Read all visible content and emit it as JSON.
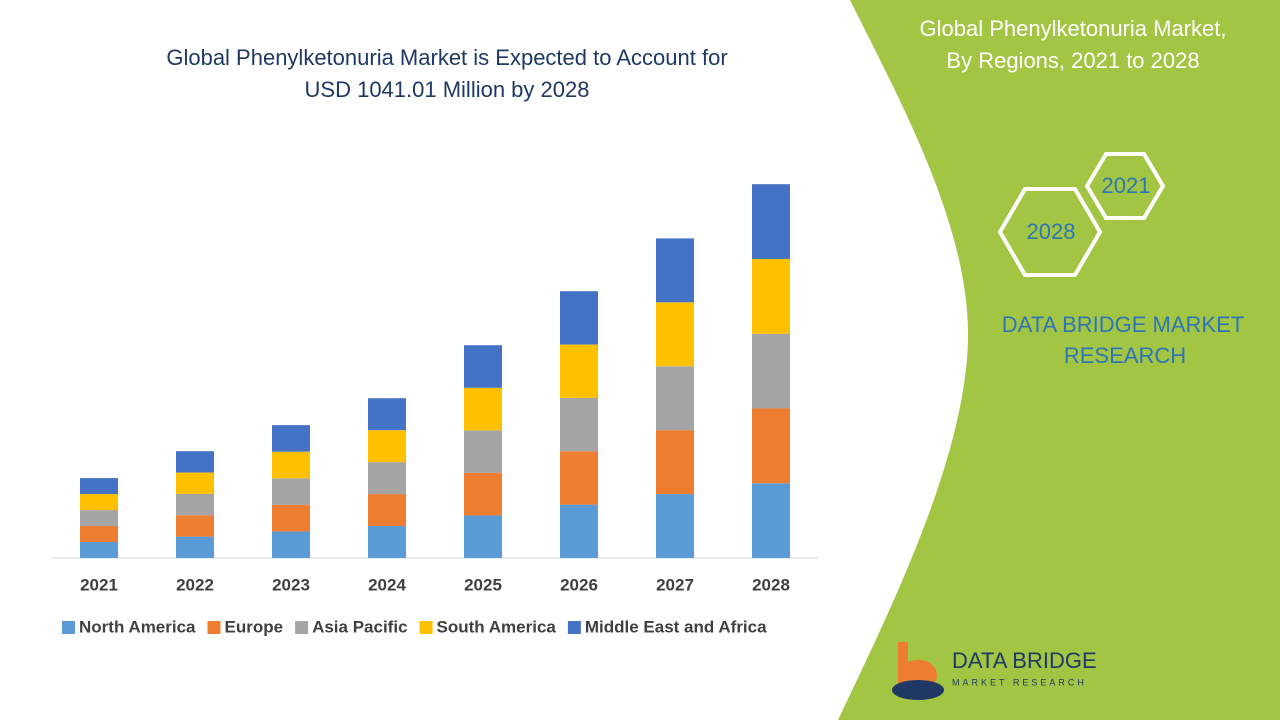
{
  "chart_data": {
    "type": "stacked_bar",
    "title": [
      "Global Phenylketonuria Market is Expected to Account for",
      "USD 1041.01 Million by 2028"
    ],
    "categories": [
      "2021",
      "2022",
      "2023",
      "2024",
      "2025",
      "2026",
      "2027",
      "2028"
    ],
    "series": [
      {
        "name": "North America",
        "color": "#5b9bd5",
        "values": [
          44.5,
          59.5,
          74,
          89,
          118.5,
          148.6,
          178,
          208.2
        ]
      },
      {
        "name": "Europe",
        "color": "#ed7d31",
        "values": [
          44.5,
          59.5,
          74,
          89,
          118.5,
          148.6,
          178,
          208.2
        ]
      },
      {
        "name": "Asia Pacific",
        "color": "#a5a5a5",
        "values": [
          44.5,
          59.5,
          74,
          89,
          118.5,
          148.6,
          178,
          208.2
        ]
      },
      {
        "name": "South America",
        "color": "#ffc000",
        "values": [
          44.5,
          59.5,
          74,
          89,
          118.5,
          148.6,
          178,
          208.2
        ]
      },
      {
        "name": "Middle East and Africa",
        "color": "#4472c4",
        "values": [
          44.5,
          59.5,
          74,
          89,
          118.5,
          148.6,
          178,
          208.2
        ]
      }
    ],
    "ylim": [
      0,
      1100
    ],
    "legend": "bottom",
    "grid": false
  },
  "panel": {
    "title": [
      "Global Phenylketonuria Market,",
      "By Regions, 2021 to 2028"
    ],
    "hex_years": [
      "2021",
      "2028"
    ],
    "brand": [
      "DATA BRIDGE MARKET",
      "RESEARCH"
    ]
  },
  "logo": {
    "name": "DATA BRIDGE",
    "tagline": "MARKET RESEARCH"
  }
}
